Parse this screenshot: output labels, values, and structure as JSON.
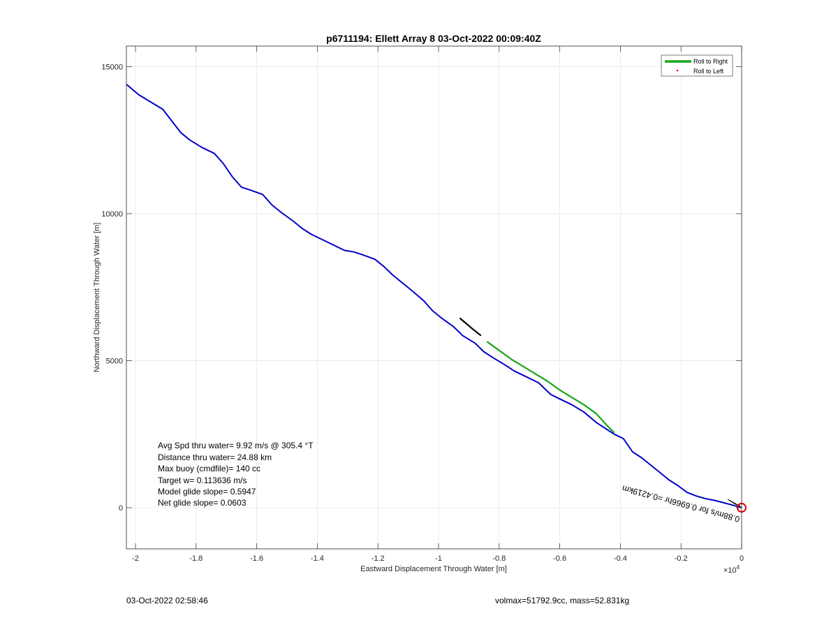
{
  "chart_data": {
    "type": "line",
    "title": "p6711194: Ellett Array 8 03-Oct-2022 00:09:40Z",
    "xlabel": "Eastward Displacement Through Water [m]",
    "ylabel": "Northward Displacement Through Water [m]",
    "x_exponent": "×10",
    "x_exponent_power": "4",
    "xlim": [
      -2.03,
      0.0
    ],
    "ylim": [
      -1400,
      15700
    ],
    "xticks": [
      -2,
      -1.8,
      -1.6,
      -1.4,
      -1.2,
      -1,
      -0.8,
      -0.6,
      -0.4,
      -0.2,
      0
    ],
    "xtick_labels": [
      "-2",
      "-1.8",
      "-1.6",
      "-1.4",
      "-1.2",
      "-1",
      "-0.8",
      "-0.6",
      "-0.4",
      "-0.2",
      "0"
    ],
    "yticks": [
      0,
      5000,
      10000,
      15000
    ],
    "ytick_labels": [
      "0",
      "5000",
      "10000",
      "15000"
    ],
    "grid": true,
    "legend_position": "top-right",
    "legend": [
      {
        "label": "Roll to Right",
        "color": "#1aa51a",
        "style": "line"
      },
      {
        "label": "Roll to Left",
        "color": "#ff0000",
        "style": "dot"
      }
    ],
    "series": [
      {
        "color": "#0000cc",
        "x": [
          -2.03,
          -1.99,
          -1.95,
          -1.91,
          -1.88,
          -1.85,
          -1.82,
          -1.78,
          -1.74,
          -1.71,
          -1.68,
          -1.65,
          -1.62,
          -1.58,
          -1.55,
          -1.52,
          -1.48,
          -1.45,
          -1.42,
          -1.38,
          -1.34,
          -1.31,
          -1.28,
          -1.25,
          -1.21,
          -1.18,
          -1.15,
          -1.12,
          -1.09,
          -1.05,
          -1.02,
          -0.99,
          -0.95,
          -0.92,
          -0.88,
          -0.85,
          -0.82,
          -0.78,
          -0.75,
          -0.71,
          -0.67,
          -0.63,
          -0.6,
          -0.56,
          -0.52,
          -0.48,
          -0.45,
          -0.42,
          -0.39,
          -0.36,
          -0.33,
          -0.3,
          -0.27,
          -0.24,
          -0.21,
          -0.18,
          -0.15,
          -0.12,
          -0.09,
          -0.06,
          -0.03,
          0.0
        ],
        "y": [
          14400,
          14050,
          13800,
          13550,
          13150,
          12750,
          12500,
          12250,
          12050,
          11700,
          11250,
          10900,
          10800,
          10650,
          10300,
          10050,
          9750,
          9500,
          9300,
          9100,
          8900,
          8750,
          8700,
          8600,
          8450,
          8200,
          7900,
          7650,
          7400,
          7050,
          6700,
          6450,
          6150,
          5850,
          5600,
          5300,
          5100,
          4850,
          4650,
          4450,
          4250,
          3850,
          3700,
          3500,
          3250,
          2900,
          2700,
          2500,
          2350,
          1900,
          1700,
          1450,
          1200,
          950,
          750,
          520,
          400,
          310,
          250,
          170,
          90,
          0
        ]
      }
    ],
    "overlays": [
      {
        "color": "#1aa51a",
        "x": [
          -0.84,
          -0.8,
          -0.76,
          -0.72,
          -0.68,
          -0.64,
          -0.6,
          -0.56,
          -0.52,
          -0.48,
          -0.44,
          -0.42
        ],
        "y": [
          5650,
          5350,
          5050,
          4800,
          4550,
          4300,
          4000,
          3750,
          3500,
          3200,
          2750,
          2550
        ]
      },
      {
        "color": "#000000",
        "x": [
          -0.93,
          -0.89,
          -0.86
        ],
        "y": [
          6450,
          6100,
          5850
        ]
      }
    ],
    "rotated_annotation": "0.88m/s for 0.6966hr =0.4219km",
    "rotated_annotation_angle": 15,
    "end_marker": {
      "x": 0.0,
      "y": 0,
      "color": "#dd0000"
    },
    "stats": [
      "Avg Spd thru water=  9.92 m/s @ 305.4 °T",
      "Distance thru water= 24.88 km",
      "Max buoy (cmdfile)= 140 cc",
      "Target w= 0.113636 m/s",
      "Model glide slope= 0.5947",
      "Net glide slope= 0.0603"
    ]
  },
  "footer": {
    "left": "03-Oct-2022 02:58:46",
    "right": "volmax=51792.9cc, mass=52.831kg"
  }
}
